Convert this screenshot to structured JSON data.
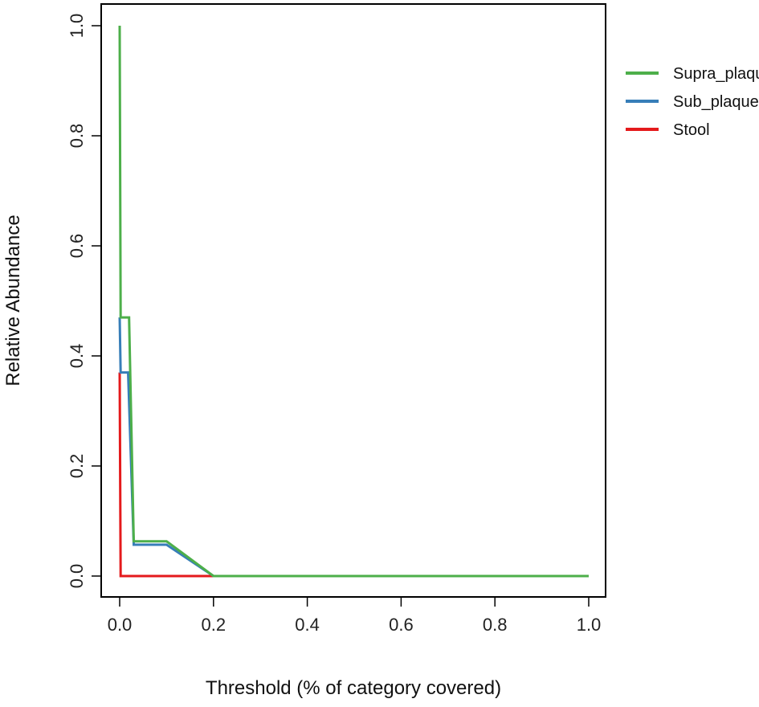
{
  "chart_data": {
    "type": "line",
    "title": "",
    "xlabel": "Threshold (% of category covered)",
    "ylabel": "Relative Abundance",
    "xlim": [
      0,
      1
    ],
    "ylim": [
      0,
      1
    ],
    "x_ticks": [
      "0.0",
      "0.2",
      "0.4",
      "0.6",
      "0.8",
      "1.0"
    ],
    "y_ticks": [
      "0.0",
      "0.2",
      "0.4",
      "0.6",
      "0.8",
      "1.0"
    ],
    "grid": false,
    "legend_position": "right",
    "series": [
      {
        "name": "Supra_plaque",
        "color": "#4daf4a",
        "points": [
          [
            0.0,
            1.0
          ],
          [
            0.002,
            0.47
          ],
          [
            0.02,
            0.47
          ],
          [
            0.03,
            0.063
          ],
          [
            0.1,
            0.063
          ],
          [
            0.2,
            0.0
          ],
          [
            1.0,
            0.0
          ]
        ]
      },
      {
        "name": "Sub_plaque",
        "color": "#377eb8",
        "points": [
          [
            0.0,
            0.47
          ],
          [
            0.002,
            0.37
          ],
          [
            0.018,
            0.37
          ],
          [
            0.03,
            0.057
          ],
          [
            0.1,
            0.057
          ],
          [
            0.2,
            0.0
          ],
          [
            1.0,
            0.0
          ]
        ]
      },
      {
        "name": "Stool",
        "color": "#e41a1c",
        "points": [
          [
            0.0,
            0.37
          ],
          [
            0.002,
            0.0
          ],
          [
            0.2,
            0.0
          ]
        ]
      }
    ]
  }
}
